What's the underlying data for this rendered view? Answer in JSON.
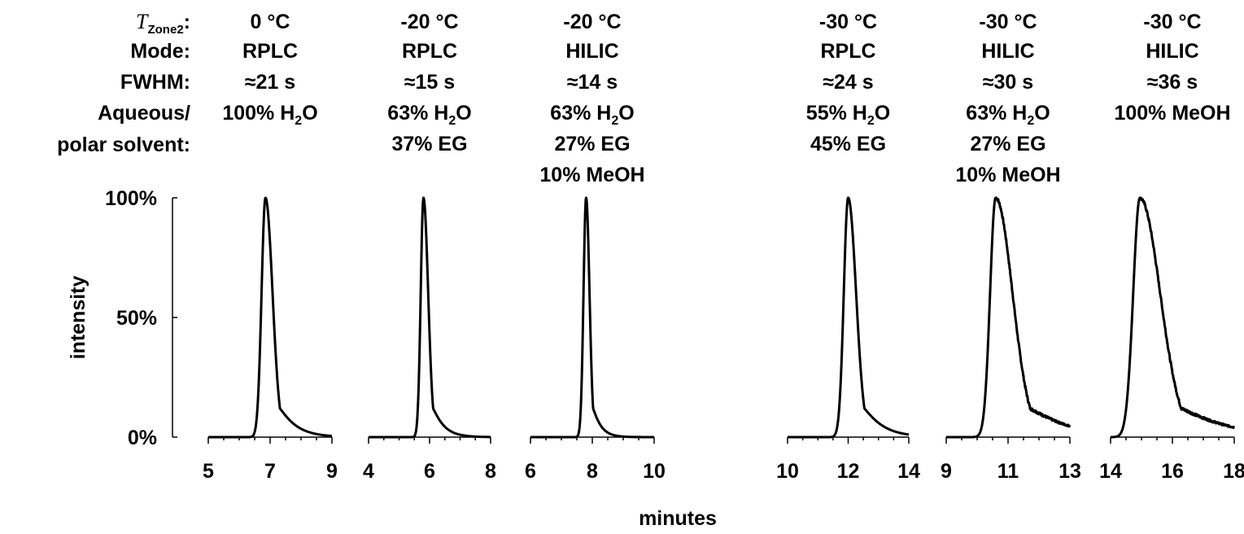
{
  "row_labels": {
    "tzone_symbol": "T",
    "tzone_sub": "Zone2",
    "tzone_suffix": ":",
    "mode": "Mode:",
    "fwhm": "FWHM:",
    "aqueous_line1": "Aqueous/",
    "aqueous_line2": "polar solvent:"
  },
  "columns": [
    {
      "temp": "0 °C",
      "mode": "RPLC",
      "fwhm": "≈21 s",
      "solvent": [
        [
          "100% H",
          "2",
          "O"
        ]
      ]
    },
    {
      "temp": "-20 °C",
      "mode": "RPLC",
      "fwhm": "≈15 s",
      "solvent": [
        [
          "63% H",
          "2",
          "O"
        ],
        [
          "37% EG",
          "",
          ""
        ]
      ]
    },
    {
      "temp": "-20 °C",
      "mode": "HILIC",
      "fwhm": "≈14 s",
      "solvent": [
        [
          "63% H",
          "2",
          "O"
        ],
        [
          "27% EG",
          "",
          ""
        ],
        [
          "10% MeOH",
          "",
          ""
        ]
      ]
    },
    {
      "temp": "-30 °C",
      "mode": "RPLC",
      "fwhm": "≈24 s",
      "solvent": [
        [
          "55% H",
          "2",
          "O"
        ],
        [
          "45% EG",
          "",
          ""
        ]
      ]
    },
    {
      "temp": "-30 °C",
      "mode": "HILIC",
      "fwhm": "≈30 s",
      "solvent": [
        [
          "63% H",
          "2",
          "O"
        ],
        [
          "27% EG",
          "",
          ""
        ],
        [
          "10% MeOH",
          "",
          ""
        ]
      ]
    },
    {
      "temp": "-30 °C",
      "mode": "HILIC",
      "fwhm": "≈36 s",
      "solvent": [
        [
          "100% MeOH",
          "",
          ""
        ]
      ]
    }
  ],
  "chart_data": {
    "type": "line",
    "ylabel": "intensity",
    "xlabel": "minutes",
    "y_ticks": [
      "0%",
      "50%",
      "100%"
    ],
    "ylim": [
      0,
      100
    ],
    "grid": false,
    "panels": [
      {
        "xlim": [
          5,
          9
        ],
        "xticks": [
          5,
          7,
          9
        ],
        "peak": 6.85,
        "fwhm_s": 21,
        "tailing": 1.8,
        "noise": 0,
        "points": [
          [
            5,
            0
          ],
          [
            6.6,
            0
          ],
          [
            6.7,
            25
          ],
          [
            6.8,
            85
          ],
          [
            6.85,
            100
          ],
          [
            6.95,
            85
          ],
          [
            7.1,
            45
          ],
          [
            7.3,
            15
          ],
          [
            7.6,
            4
          ],
          [
            8,
            1
          ],
          [
            9,
            0
          ]
        ]
      },
      {
        "xlim": [
          4,
          8
        ],
        "xticks": [
          4,
          6,
          8
        ],
        "peak": 5.8,
        "fwhm_s": 15,
        "tailing": 1.7,
        "noise": 0,
        "points": [
          [
            4,
            0
          ],
          [
            5.7,
            0
          ],
          [
            5.78,
            90
          ],
          [
            5.8,
            100
          ],
          [
            5.88,
            80
          ],
          [
            6.0,
            38
          ],
          [
            6.2,
            12
          ],
          [
            6.5,
            3
          ],
          [
            7,
            1
          ],
          [
            8,
            0
          ]
        ]
      },
      {
        "xlim": [
          6,
          10
        ],
        "xticks": [
          6,
          8,
          10
        ],
        "peak": 7.8,
        "fwhm_s": 14,
        "tailing": 1.3,
        "noise": 0,
        "points": [
          [
            6,
            0
          ],
          [
            7.6,
            0
          ],
          [
            7.72,
            60
          ],
          [
            7.8,
            100
          ],
          [
            7.9,
            70
          ],
          [
            8.0,
            25
          ],
          [
            8.1,
            12
          ],
          [
            8.2,
            2
          ],
          [
            8.3,
            0
          ],
          [
            10,
            0
          ]
        ]
      },
      {
        "xlim": [
          10,
          14
        ],
        "xticks": [
          10,
          12,
          14
        ],
        "peak": 12.0,
        "fwhm_s": 24,
        "tailing": 1.8,
        "noise": 0,
        "points": [
          [
            10,
            0
          ],
          [
            11.6,
            0
          ],
          [
            11.8,
            40
          ],
          [
            11.95,
            95
          ],
          [
            12.0,
            100
          ],
          [
            12.15,
            80
          ],
          [
            12.35,
            35
          ],
          [
            12.6,
            10
          ],
          [
            13,
            2
          ],
          [
            14,
            0
          ]
        ]
      },
      {
        "xlim": [
          9,
          13
        ],
        "xticks": [
          9,
          11,
          13
        ],
        "peak": 10.6,
        "fwhm_s": 30,
        "tailing": 3.0,
        "noise": 0.6,
        "points": [
          [
            9,
            0
          ],
          [
            10.35,
            0
          ],
          [
            10.5,
            75
          ],
          [
            10.6,
            100
          ],
          [
            10.7,
            85
          ],
          [
            10.9,
            60
          ],
          [
            11.1,
            28
          ],
          [
            11.3,
            10
          ],
          [
            11.6,
            2
          ],
          [
            13,
            0
          ]
        ]
      },
      {
        "xlim": [
          14,
          18
        ],
        "xticks": [
          14,
          16,
          18
        ],
        "peak": 14.95,
        "fwhm_s": 36,
        "tailing": 3.0,
        "noise": 0.6,
        "points": [
          [
            14,
            0
          ],
          [
            14.7,
            0
          ],
          [
            14.85,
            70
          ],
          [
            14.95,
            100
          ],
          [
            15.1,
            88
          ],
          [
            15.3,
            60
          ],
          [
            15.6,
            25
          ],
          [
            16,
            8
          ],
          [
            16.5,
            2
          ],
          [
            17,
            1
          ],
          [
            18,
            0
          ]
        ]
      }
    ]
  }
}
